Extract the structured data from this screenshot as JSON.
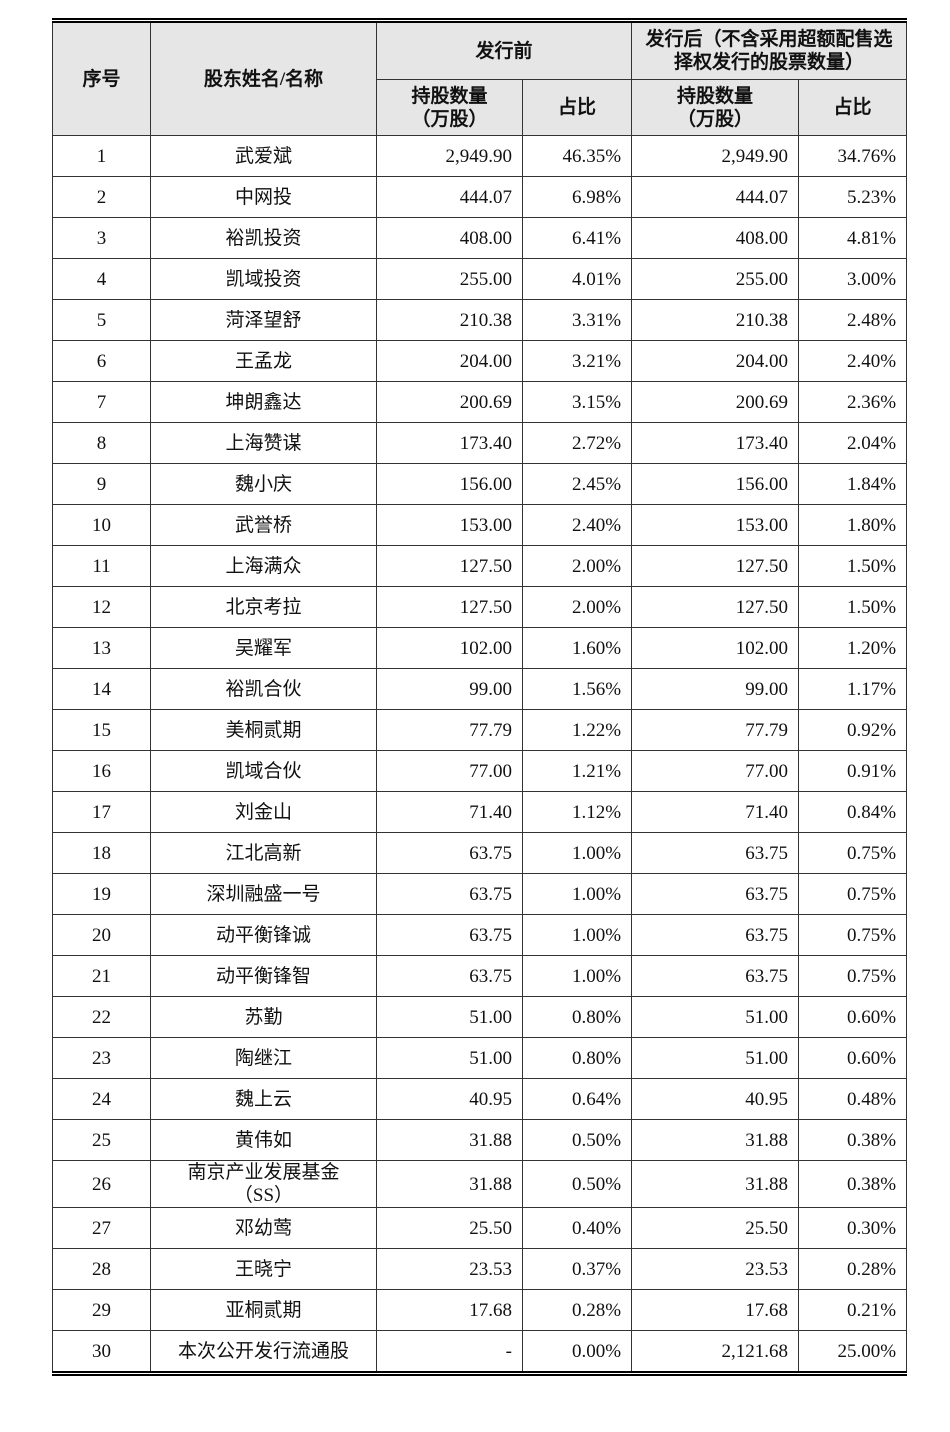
{
  "table": {
    "header": {
      "seq": "序号",
      "name": "股东姓名/名称",
      "before": "发行前",
      "after": "发行后（不含采用超额配售选择权发行的股票数量）",
      "before_shares": "持股数量（万股）",
      "before_ratio": "占比",
      "after_shares": "持股数量（万股）",
      "after_ratio": "占比"
    },
    "rows": [
      [
        "1",
        "武爱斌",
        "2,949.90",
        "46.35%",
        "2,949.90",
        "34.76%"
      ],
      [
        "2",
        "中网投",
        "444.07",
        "6.98%",
        "444.07",
        "5.23%"
      ],
      [
        "3",
        "裕凯投资",
        "408.00",
        "6.41%",
        "408.00",
        "4.81%"
      ],
      [
        "4",
        "凯域投资",
        "255.00",
        "4.01%",
        "255.00",
        "3.00%"
      ],
      [
        "5",
        "菏泽望舒",
        "210.38",
        "3.31%",
        "210.38",
        "2.48%"
      ],
      [
        "6",
        "王孟龙",
        "204.00",
        "3.21%",
        "204.00",
        "2.40%"
      ],
      [
        "7",
        "坤朗鑫达",
        "200.69",
        "3.15%",
        "200.69",
        "2.36%"
      ],
      [
        "8",
        "上海赞谋",
        "173.40",
        "2.72%",
        "173.40",
        "2.04%"
      ],
      [
        "9",
        "魏小庆",
        "156.00",
        "2.45%",
        "156.00",
        "1.84%"
      ],
      [
        "10",
        "武誉桥",
        "153.00",
        "2.40%",
        "153.00",
        "1.80%"
      ],
      [
        "11",
        "上海满众",
        "127.50",
        "2.00%",
        "127.50",
        "1.50%"
      ],
      [
        "12",
        "北京考拉",
        "127.50",
        "2.00%",
        "127.50",
        "1.50%"
      ],
      [
        "13",
        "吴耀军",
        "102.00",
        "1.60%",
        "102.00",
        "1.20%"
      ],
      [
        "14",
        "裕凯合伙",
        "99.00",
        "1.56%",
        "99.00",
        "1.17%"
      ],
      [
        "15",
        "美桐贰期",
        "77.79",
        "1.22%",
        "77.79",
        "0.92%"
      ],
      [
        "16",
        "凯域合伙",
        "77.00",
        "1.21%",
        "77.00",
        "0.91%"
      ],
      [
        "17",
        "刘金山",
        "71.40",
        "1.12%",
        "71.40",
        "0.84%"
      ],
      [
        "18",
        "江北高新",
        "63.75",
        "1.00%",
        "63.75",
        "0.75%"
      ],
      [
        "19",
        "深圳融盛一号",
        "63.75",
        "1.00%",
        "63.75",
        "0.75%"
      ],
      [
        "20",
        "动平衡锋诚",
        "63.75",
        "1.00%",
        "63.75",
        "0.75%"
      ],
      [
        "21",
        "动平衡锋智",
        "63.75",
        "1.00%",
        "63.75",
        "0.75%"
      ],
      [
        "22",
        "苏勤",
        "51.00",
        "0.80%",
        "51.00",
        "0.60%"
      ],
      [
        "23",
        "陶继江",
        "51.00",
        "0.80%",
        "51.00",
        "0.60%"
      ],
      [
        "24",
        "魏上云",
        "40.95",
        "0.64%",
        "40.95",
        "0.48%"
      ],
      [
        "25",
        "黄伟如",
        "31.88",
        "0.50%",
        "31.88",
        "0.38%"
      ],
      [
        "26",
        "南京产业发展基金（SS）",
        "31.88",
        "0.50%",
        "31.88",
        "0.38%"
      ],
      [
        "27",
        "邓幼莺",
        "25.50",
        "0.40%",
        "25.50",
        "0.30%"
      ],
      [
        "28",
        "王晓宁",
        "23.53",
        "0.37%",
        "23.53",
        "0.28%"
      ],
      [
        "29",
        "亚桐贰期",
        "17.68",
        "0.28%",
        "17.68",
        "0.21%"
      ],
      [
        "30",
        "本次公开发行流通股",
        "-",
        "0.00%",
        "2,121.68",
        "25.00%"
      ]
    ]
  }
}
